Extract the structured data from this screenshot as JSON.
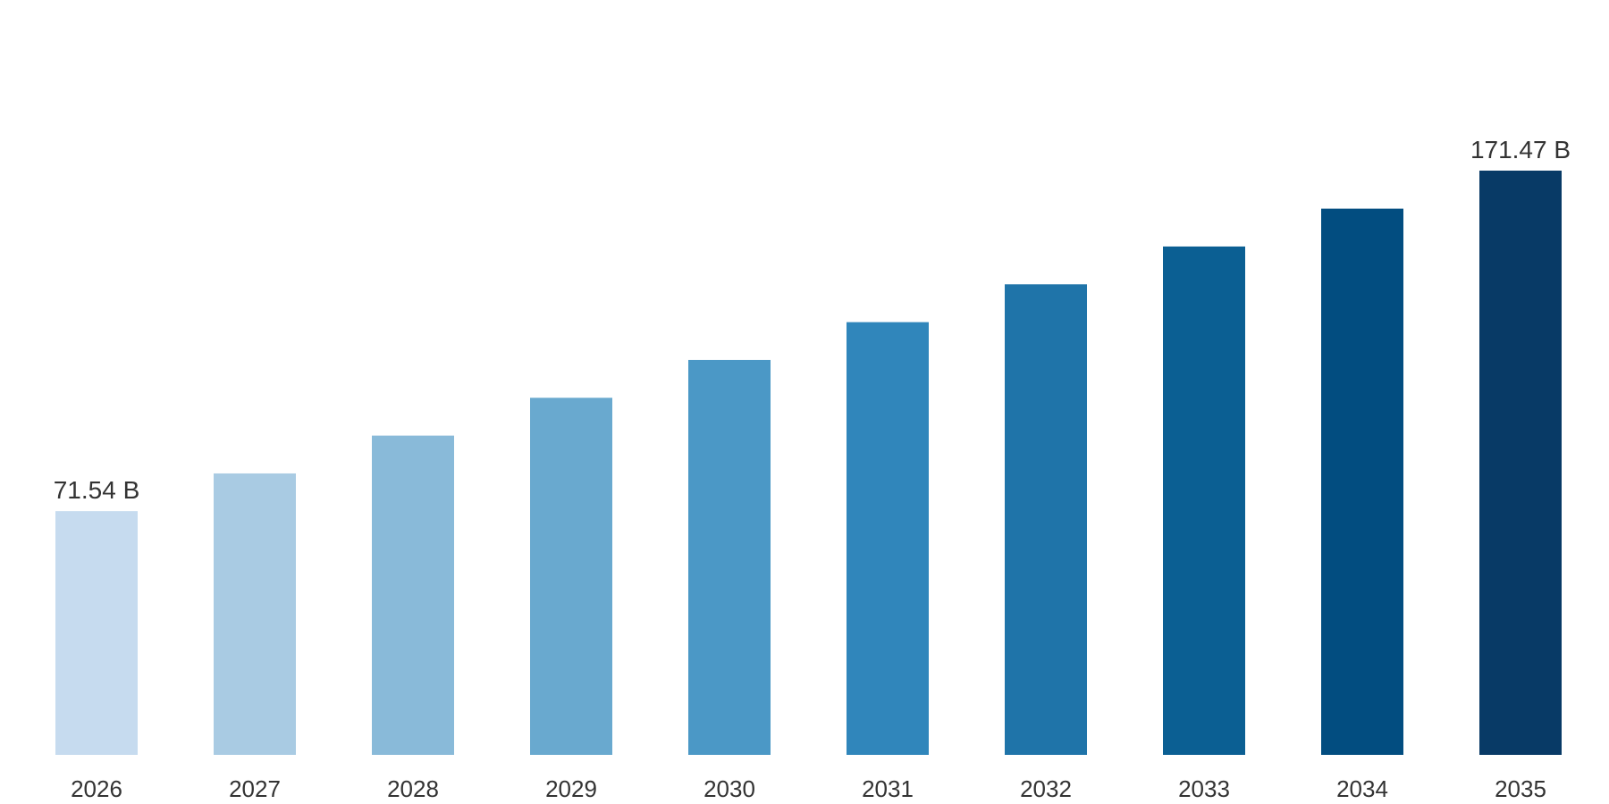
{
  "chart_data": {
    "type": "bar",
    "title": "",
    "xlabel": "",
    "ylabel": "",
    "categories": [
      "2026",
      "2027",
      "2028",
      "2029",
      "2030",
      "2031",
      "2032",
      "2033",
      "2034",
      "2035"
    ],
    "values": [
      71.54,
      82.6,
      93.7,
      104.8,
      115.9,
      127.0,
      138.1,
      149.2,
      160.3,
      171.47
    ],
    "data_labels": [
      {
        "index": 0,
        "text": "71.54 B"
      },
      {
        "index": 9,
        "text": "171.47 B"
      }
    ],
    "bar_colors": [
      "#c6dbef",
      "#a9cbe3",
      "#89bad9",
      "#69a9cf",
      "#4b98c6",
      "#3086bb",
      "#1f74a9",
      "#0b5f93",
      "#024d80",
      "#083a66"
    ],
    "ylim": [
      0,
      171.47
    ],
    "grid": false,
    "legend": "none",
    "text_color": "#333333"
  }
}
